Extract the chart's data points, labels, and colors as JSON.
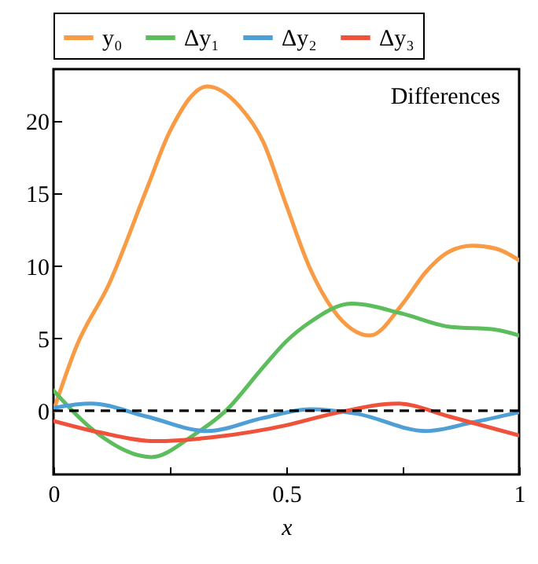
{
  "chart_data": {
    "type": "line",
    "xlabel": "x",
    "annotations": [
      "Differences"
    ],
    "legend": "top",
    "xlim": [
      0,
      1
    ],
    "ylim": [
      -4.4,
      23.6
    ],
    "xticks": [
      0,
      {
        "value": 0.25,
        "label": null
      },
      0.5,
      {
        "value": 0.75,
        "label": null
      },
      1
    ],
    "yticks": [
      0,
      5,
      10,
      15,
      20
    ],
    "ref_lines": [
      {
        "axis": "y",
        "value": 0,
        "color": "#000000",
        "line_style": "dashed"
      }
    ],
    "series": [
      {
        "name": "y₀",
        "color": "#f99b45",
        "x": [
          0,
          0.05,
          0.12,
          0.2,
          0.25,
          0.33,
          0.4,
          0.45,
          0.5,
          0.55,
          0.6,
          0.68,
          0.75,
          0.8,
          0.85,
          0.9,
          0.95,
          1
        ],
        "values": [
          0,
          4.5,
          8.8,
          15.3,
          19.3,
          22.4,
          21,
          18.6,
          14.2,
          9.9,
          7,
          5.2,
          7.4,
          9.6,
          11,
          11.4,
          11.2,
          10.4
        ]
      },
      {
        "name": "Δy₁",
        "color": "#5cbd5c",
        "x": [
          0,
          0.1,
          0.21,
          0.3,
          0.37,
          0.45,
          0.5,
          0.55,
          0.64,
          0.75,
          0.85,
          0.95,
          1
        ],
        "values": [
          1.4,
          -1.7,
          -3.2,
          -1.7,
          0,
          3,
          4.8,
          6.1,
          7.4,
          6.7,
          5.8,
          5.6,
          5.2
        ]
      },
      {
        "name": "Δy₂",
        "color": "#4e9fd6",
        "x": [
          0,
          0.08,
          0.2,
          0.33,
          0.45,
          0.55,
          0.65,
          0.8,
          0.9,
          1
        ],
        "values": [
          0.2,
          0.5,
          -0.4,
          -1.4,
          -0.5,
          0.1,
          -0.2,
          -1.4,
          -0.8,
          -0.1
        ]
      },
      {
        "name": "Δy₃",
        "color": "#f0513a",
        "x": [
          0,
          0.1,
          0.22,
          0.35,
          0.5,
          0.6,
          0.74,
          0.85,
          1
        ],
        "values": [
          -0.7,
          -1.5,
          -2.1,
          -1.8,
          -1,
          -0.2,
          0.5,
          -0.4,
          -1.7
        ]
      }
    ]
  }
}
